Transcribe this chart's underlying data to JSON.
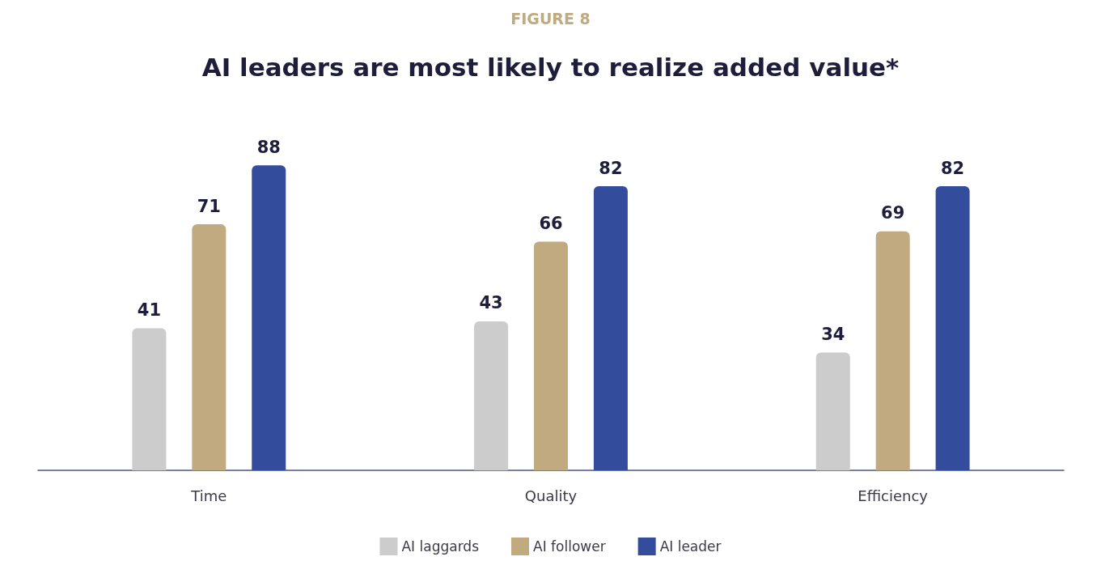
{
  "chart_data": {
    "type": "bar",
    "subtitle": "FIGURE 8",
    "title": "AI leaders are most likely to realize added value*",
    "categories": [
      "Time",
      "Quality",
      "Efficiency"
    ],
    "series": [
      {
        "name": "AI laggards",
        "color": "#cccccc",
        "values": [
          41,
          43,
          34
        ]
      },
      {
        "name": "AI follower",
        "color": "#c1aa7f",
        "values": [
          71,
          66,
          69
        ]
      },
      {
        "name": "AI leader",
        "color": "#344c9c",
        "values": [
          88,
          82,
          82
        ]
      }
    ],
    "data_labels": true,
    "legend": "bottom"
  }
}
